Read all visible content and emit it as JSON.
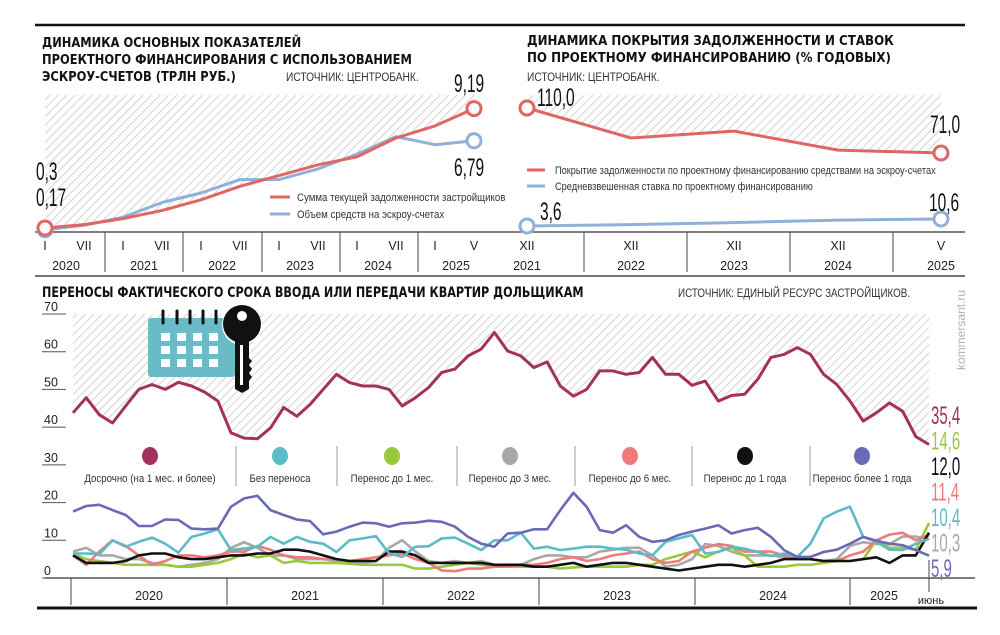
{
  "colors": {
    "debt": "#e06666",
    "escrow": "#8fb1d9",
    "early": "#a3305e",
    "no_delay": "#5bbcc8",
    "delay_1m": "#9cc83c",
    "delay_3m": "#a8a8a8",
    "delay_6m": "#ef7b78",
    "delay_1y": "#111111",
    "delay_over_1y": "#6a6ab8",
    "icon": "#6bbac8"
  },
  "icons": [
    "calendar-icon",
    "key-icon"
  ],
  "watermark": "kommersant.ru",
  "chart_data": [
    {
      "type": "line",
      "title_lines": [
        "ДИНАМИКА ОСНОВНЫХ ПОКАЗАТЕЛЕЙ",
        "ПРОЕКТНОГО ФИНАНСИРОВАНИЯ С ИСПОЛЬЗОВАНИЕМ",
        "ЭСКРОУ-СЧЕТОВ (ТРЛН РУБ.)"
      ],
      "source": "ИСТОЧНИК: ЦЕНТРОБАНК.",
      "x": [
        "I 2020",
        "VII 2020",
        "I 2021",
        "VII 2021",
        "I 2022",
        "VII 2022",
        "I 2023",
        "VII 2023",
        "I 2024",
        "VII 2024",
        "I 2025",
        "V 2025"
      ],
      "tick_labels": [
        "I",
        "VII",
        "I",
        "VII",
        "I",
        "VII",
        "I",
        "VII",
        "I",
        "VII",
        "I",
        "V"
      ],
      "years": [
        "2020",
        "2021",
        "2022",
        "2023",
        "2024",
        "2025"
      ],
      "ylim": [
        0,
        10.2
      ],
      "series": [
        {
          "name": "Сумма текущей задолженности застройщиков",
          "color_key": "debt",
          "values": [
            0.3,
            0.55,
            1.0,
            1.6,
            2.4,
            3.4,
            4.2,
            5.0,
            5.6,
            7.0,
            7.9,
            9.19
          ],
          "start_label": "0,3",
          "end_label": "9,19"
        },
        {
          "name": "Объем средств на эскроу-счетах",
          "color_key": "escrow",
          "values": [
            0.17,
            0.5,
            1.1,
            2.2,
            2.9,
            3.9,
            3.9,
            4.7,
            5.8,
            7.1,
            6.5,
            6.79
          ],
          "start_label": "0,17",
          "end_label": "6,79"
        }
      ]
    },
    {
      "type": "line",
      "title_lines": [
        "ДИНАМИКА ПОКРЫТИЯ ЗАДОЛЖЕННОСТИ И СТАВОК",
        "ПО ПРОЕКТНОМУ ФИНАНСИРОВАНИЮ  (% ГОДОВЫХ)"
      ],
      "source": "ИСТОЧНИК: ЦЕНТРОБАНК.",
      "x": [
        "XII 2021",
        "XII 2022",
        "XII 2023",
        "XII 2024",
        "V 2025"
      ],
      "tick_labels": [
        "XII",
        "XII",
        "XII",
        "XII",
        "V"
      ],
      "years": [
        "2021",
        "2022",
        "2023",
        "2024",
        "2025"
      ],
      "series": [
        {
          "name": "Покрытие задолженности по проектному финансированию средствами на эскроу-счетах",
          "color_key": "debt",
          "values": [
            110.0,
            84,
            90,
            73.5,
            71.0
          ],
          "start_label": "110,0",
          "end_label": "71,0"
        },
        {
          "name": "Средневзвешенная ставка по проектному финансированию",
          "color_key": "escrow",
          "values": [
            3.6,
            5.0,
            7.0,
            9.5,
            10.6
          ],
          "start_label": "3,6",
          "end_label": "10,6"
        }
      ]
    },
    {
      "type": "line",
      "title": "ПЕРЕНОСЫ ФАКТИЧЕСКОГО СРОКА ВВОДА ИЛИ ПЕРЕДАЧИ КВАРТИР ДОЛЬЩИКАМ",
      "source": "ИСТОЧНИК: ЕДИНЫЙ РЕСУРС ЗАСТРОЙЩИКОВ.",
      "x_range": [
        "2020-01",
        "2025-06"
      ],
      "x_frequency": "monthly",
      "years": [
        "2020",
        "2021",
        "2022",
        "2023",
        "2024",
        "2025"
      ],
      "last_label": "июнь",
      "ylim": [
        0,
        70
      ],
      "yticks": [
        0,
        10,
        20,
        30,
        40,
        50,
        60,
        70
      ],
      "grid": false,
      "legend_position": "middle",
      "series": [
        {
          "name": "Досрочно (на 1 мес. и более)",
          "color_key": "early",
          "end_label": "35,4",
          "values": [
            43.8,
            47.8,
            43.3,
            41.1,
            45.6,
            50,
            51.3,
            50,
            51.9,
            50.9,
            49.3,
            46.9,
            38.5,
            37.1,
            36.9,
            39.8,
            45.2,
            42.9,
            46,
            50,
            54,
            51.8,
            50.9,
            50.9,
            50,
            45.6,
            47.8,
            50.5,
            54.5,
            55.4,
            58.9,
            60.7,
            65.1,
            60.2,
            58.9,
            55.8,
            57.3,
            50.9,
            48.2,
            50,
            54.9,
            54.9,
            54,
            54.5,
            58.5,
            54,
            54,
            51.1,
            52.2,
            46.9,
            48.4,
            48.7,
            52.7,
            58.5,
            59.3,
            61.1,
            59.3,
            54,
            51.3,
            46.9,
            41.6,
            43.8,
            46.4,
            44.2,
            37.5,
            35.4
          ]
        },
        {
          "name": "Без переноса",
          "color_key": "no_delay",
          "end_label": "10,4",
          "values": [
            6.5,
            6.5,
            6.3,
            10,
            8.3,
            9.6,
            10.7,
            9.1,
            6.7,
            10.9,
            11.8,
            12.9,
            7.4,
            7.8,
            8.3,
            10.9,
            9.1,
            10.9,
            9.6,
            9.1,
            6.9,
            10,
            10.5,
            11.1,
            6.5,
            5.6,
            8.3,
            8.4,
            10.5,
            10.7,
            9.1,
            7.4,
            10,
            10,
            12,
            7.8,
            8.3,
            7.4,
            7.8,
            8.3,
            8.3,
            7.8,
            7.5,
            6.5,
            6,
            9.6,
            10.5,
            11.4,
            6.5,
            6.9,
            8.3,
            7.8,
            6.9,
            5.8,
            6.5,
            5.6,
            9.1,
            15.8,
            17.6,
            18.9,
            10.9,
            9.6,
            7.5,
            7.4,
            9.1,
            10.4
          ]
        },
        {
          "name": "Перенос до 1 мес.",
          "color_key": "delay_1m",
          "end_label": "14,6",
          "values": [
            6.5,
            5,
            4.5,
            4,
            3.5,
            3.5,
            3.5,
            3.5,
            3,
            3,
            3.5,
            4,
            5,
            6.5,
            5.5,
            6,
            4,
            4.5,
            4,
            4,
            4,
            3.8,
            3.5,
            3.5,
            3.5,
            3.5,
            2.5,
            2.5,
            3,
            3.5,
            4,
            3.5,
            3.2,
            3,
            3,
            3,
            3,
            2.5,
            2.8,
            3,
            3,
            3,
            3,
            3.5,
            3.5,
            5,
            6,
            7,
            5.5,
            7,
            8,
            6,
            3,
            3,
            3,
            3.5,
            3.5,
            4,
            4.5,
            4.5,
            5,
            10,
            8,
            8,
            7.5,
            14.6
          ]
        },
        {
          "name": "Перенос до 3 мес.",
          "color_key": "delay_3m",
          "end_label": "10,3",
          "values": [
            7,
            8,
            6,
            6,
            5,
            5,
            4,
            3.5,
            3,
            3.5,
            4,
            5,
            8,
            9.5,
            8,
            6,
            6,
            5,
            5,
            5,
            4.5,
            4,
            4,
            4.5,
            8,
            10,
            7,
            4.5,
            4,
            4.5,
            4,
            4.5,
            3.5,
            3,
            3.5,
            5,
            6,
            6,
            5.5,
            5.5,
            7,
            7.5,
            8,
            8,
            6,
            3,
            3.5,
            5,
            9,
            8.5,
            7,
            6,
            6,
            6,
            5.5,
            5,
            5,
            4.5,
            5,
            8.5,
            9.5,
            9,
            9,
            11,
            11,
            10.3
          ]
        },
        {
          "name": "Перенос до 6 мес.",
          "color_key": "delay_6m",
          "end_label": "11,4",
          "values": [
            6,
            3.5,
            7,
            10,
            8.5,
            6,
            3.5,
            4.5,
            6,
            6,
            5.5,
            6,
            7,
            7,
            8.5,
            7.5,
            6,
            5.5,
            5.5,
            5,
            5,
            4.5,
            5,
            5.5,
            6,
            6.5,
            5,
            4,
            2,
            1.8,
            2.5,
            2.5,
            3,
            3,
            3.5,
            3.5,
            4,
            5,
            5.5,
            4.5,
            5,
            6,
            6.5,
            7,
            5,
            4,
            4.5,
            7,
            8,
            9,
            8.5,
            7,
            7,
            7,
            6,
            5.5,
            5,
            4.5,
            4.5,
            6,
            7,
            10,
            11.5,
            12,
            10,
            11.4
          ]
        },
        {
          "name": "Перенос до 1 года",
          "color_key": "delay_1y",
          "end_label": "12,0",
          "values": [
            6,
            4,
            4,
            4,
            4.5,
            6,
            6.5,
            6.5,
            5.5,
            5,
            5,
            5.5,
            6,
            6,
            6.5,
            6.5,
            7.5,
            7.5,
            7,
            6,
            5,
            4.5,
            4.5,
            4.5,
            7,
            7,
            6,
            4,
            4,
            4,
            4,
            4,
            3.5,
            3.5,
            3.5,
            3,
            3,
            3.5,
            4,
            3,
            3.5,
            4,
            4,
            3.5,
            3,
            2.5,
            2,
            2.5,
            3,
            3.5,
            3.5,
            3,
            3.5,
            4,
            5,
            5,
            5,
            4.5,
            4.5,
            4.5,
            5,
            5.5,
            4,
            6,
            6,
            12.0
          ]
        },
        {
          "name": "Перенос более 1 года",
          "color_key": "delay_over_1y",
          "end_label": "5,9",
          "values": [
            17.6,
            19.1,
            19.4,
            18,
            16.7,
            13.8,
            13.8,
            15.5,
            15.4,
            13.1,
            12.9,
            13.1,
            18.9,
            21.1,
            21.8,
            18,
            16.7,
            15.5,
            15.1,
            11.6,
            12.3,
            13.6,
            14.7,
            14.5,
            13.6,
            14.5,
            14.7,
            15.2,
            14.9,
            13.6,
            10.9,
            9.1,
            8.3,
            11.8,
            12,
            12.9,
            12.9,
            18,
            22.6,
            18.9,
            12.7,
            12,
            14,
            10.9,
            9.6,
            10,
            11.4,
            12.3,
            13.1,
            14,
            11.8,
            12.7,
            13.3,
            10.9,
            7.4,
            5.6,
            5.6,
            6.9,
            7.5,
            9.1,
            10.9,
            9.9,
            9.1,
            8.7,
            7.4,
            5.9
          ]
        }
      ],
      "end_label_order": [
        "early",
        "delay_1m",
        "delay_1y",
        "delay_6m",
        "no_delay",
        "delay_3m",
        "delay_over_1y"
      ]
    }
  ]
}
